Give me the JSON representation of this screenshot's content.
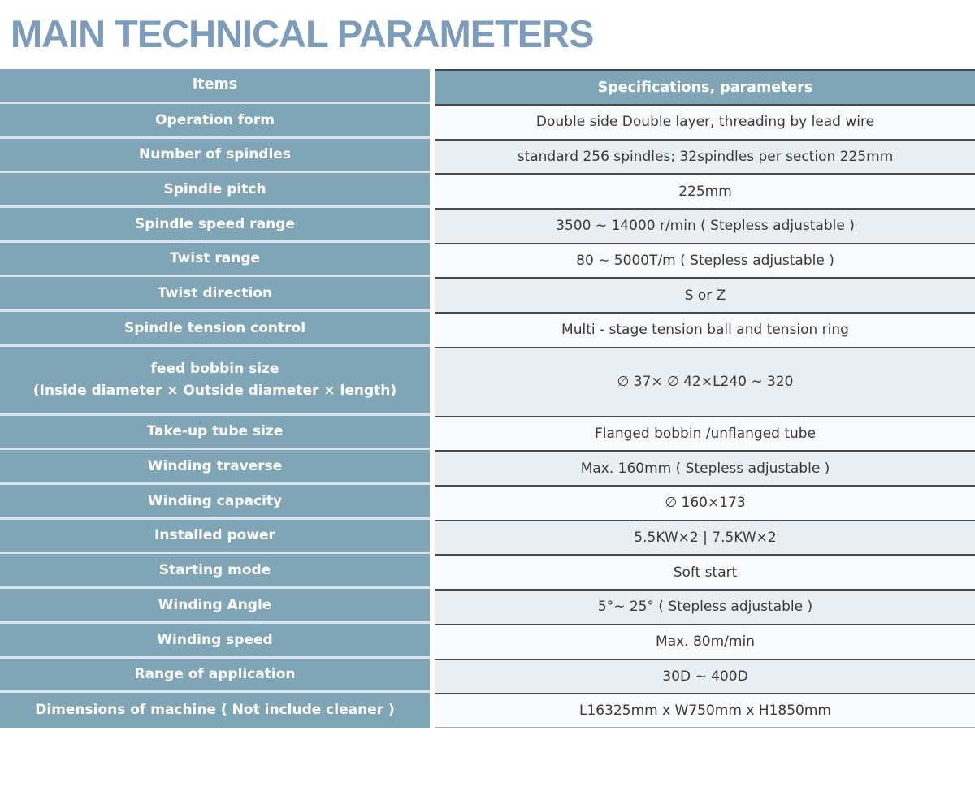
{
  "title": "MAIN TECHNICAL PARAMETERS",
  "colors": {
    "title_text": "#7d9cba",
    "header_bg": "#7fa5b6",
    "item_cell_bg": "#7fa5b6",
    "item_text": "#ffffff",
    "row_light_bg": "#f8fafc",
    "row_shaded_bg": "#e9eef2",
    "separator_dark": "#46494b",
    "separator_light": "#d8e2e7",
    "separator_bottom": "#a6abaf",
    "value_text": "#3a3a3a"
  },
  "table": {
    "header": {
      "items": "Items",
      "specs": "Specifications, parameters"
    },
    "rows": [
      {
        "item": "Operation form",
        "value": "Double side Double layer, threading by lead wire"
      },
      {
        "item": "Number of spindles",
        "value": "standard 256 spindles; 32spindles per section 225mm"
      },
      {
        "item": "Spindle pitch",
        "value": "225mm"
      },
      {
        "item": "Spindle speed range",
        "value": "3500 ~ 14000 r/min ( Stepless adjustable )"
      },
      {
        "item": "Twist range",
        "value": "80 ∼ 5000T/m ( Stepless adjustable )"
      },
      {
        "item": "Twist direction",
        "value": "S or Z"
      },
      {
        "item": "Spindle tension control",
        "value": "Multi - stage tension ball and tension ring"
      },
      {
        "item": "feed bobbin size",
        "item_line2": "(Inside diameter × Outside diameter × length)",
        "value": "∅ 37× ∅ 42×L240 ∼ 320",
        "tall": true
      },
      {
        "item": "Take-up tube size",
        "value": "Flanged bobbin /unflanged tube"
      },
      {
        "item": "Winding traverse",
        "value": "Max. 160mm ( Stepless adjustable )"
      },
      {
        "item": "Winding capacity",
        "value": "∅ 160×173"
      },
      {
        "item": "Installed power",
        "value": "5.5KW×2  |  7.5KW×2"
      },
      {
        "item": "Starting mode",
        "value": "Soft start"
      },
      {
        "item": "Winding Angle",
        "value": "5°∼ 25° ( Stepless adjustable )"
      },
      {
        "item": "Winding speed",
        "value": "Max. 80m/min"
      },
      {
        "item": "Range of application",
        "value": "30D ∼ 400D"
      },
      {
        "item": "Dimensions of machine ( Not include cleaner )",
        "value": "L16325mm x W750mm x H1850mm"
      }
    ]
  }
}
